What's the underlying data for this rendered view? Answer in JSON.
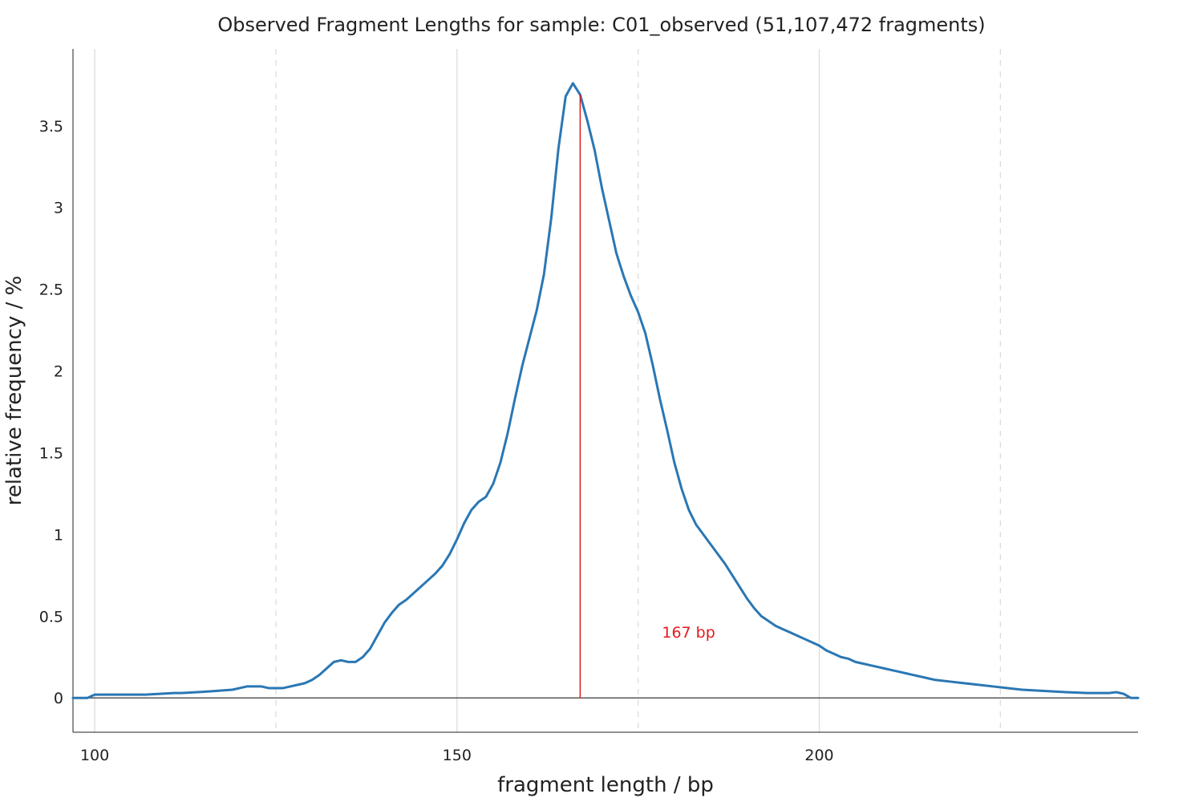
{
  "chart_data": {
    "type": "line",
    "title": "Observed Fragment Lengths for sample: C01_observed (51,107,472 fragments)",
    "xlabel": "fragment length / bp",
    "ylabel": "relative frequency / %",
    "xlim": [
      97,
      244
    ],
    "ylim": [
      -0.21,
      3.97
    ],
    "x_ticks": [
      100,
      150,
      200
    ],
    "y_ticks": [
      0,
      0.5,
      1,
      1.5,
      2,
      2.5,
      3,
      3.5
    ],
    "x_tick_labels": [
      "100",
      "150",
      "200"
    ],
    "y_tick_labels": [
      "0",
      "0.5",
      "1",
      "1.5",
      "2",
      "2.5",
      "3",
      "3.5"
    ],
    "grid": {
      "major_x": [
        100,
        150,
        200
      ],
      "minor_x": [
        125,
        175,
        225
      ],
      "y": false
    },
    "series": [
      {
        "color": "#2a77b4",
        "x": [
          97,
          99,
          100,
          103,
          107,
          111,
          112,
          116,
          119,
          121,
          122,
          123,
          124,
          126,
          127,
          128,
          129,
          130,
          131,
          132,
          133,
          134,
          135,
          136,
          137,
          138,
          139,
          140,
          141,
          142,
          143,
          144,
          145,
          146,
          147,
          148,
          149,
          150,
          151,
          152,
          153,
          154,
          155,
          156,
          157,
          158,
          159,
          160,
          161,
          162,
          163,
          164,
          165,
          166,
          167,
          168,
          169,
          170,
          171,
          172,
          173,
          174,
          175,
          176,
          177,
          178,
          179,
          180,
          181,
          182,
          183,
          184,
          185,
          186,
          187,
          188,
          189,
          190,
          191,
          192,
          193,
          194,
          195,
          196,
          197,
          198,
          199,
          200,
          201,
          202,
          203,
          204,
          205,
          206,
          207,
          208,
          209,
          210,
          211,
          212,
          213,
          214,
          215,
          216,
          218,
          220,
          222,
          224,
          226,
          228,
          230,
          232,
          234,
          237,
          240,
          241,
          242,
          243,
          244
        ],
        "y": [
          0.0,
          0.0,
          0.02,
          0.02,
          0.02,
          0.03,
          0.03,
          0.04,
          0.05,
          0.07,
          0.07,
          0.07,
          0.06,
          0.06,
          0.07,
          0.08,
          0.09,
          0.11,
          0.14,
          0.18,
          0.22,
          0.23,
          0.22,
          0.22,
          0.25,
          0.3,
          0.38,
          0.46,
          0.52,
          0.57,
          0.6,
          0.64,
          0.68,
          0.72,
          0.76,
          0.81,
          0.88,
          0.97,
          1.07,
          1.15,
          1.2,
          1.23,
          1.31,
          1.44,
          1.62,
          1.83,
          2.03,
          2.2,
          2.37,
          2.59,
          2.93,
          3.36,
          3.68,
          3.76,
          3.69,
          3.53,
          3.35,
          3.12,
          2.92,
          2.72,
          2.58,
          2.46,
          2.36,
          2.23,
          2.04,
          1.83,
          1.64,
          1.44,
          1.28,
          1.15,
          1.06,
          1.0,
          0.94,
          0.88,
          0.82,
          0.75,
          0.68,
          0.61,
          0.55,
          0.5,
          0.47,
          0.44,
          0.42,
          0.4,
          0.38,
          0.36,
          0.34,
          0.32,
          0.29,
          0.27,
          0.25,
          0.24,
          0.22,
          0.21,
          0.2,
          0.19,
          0.18,
          0.17,
          0.16,
          0.15,
          0.14,
          0.13,
          0.12,
          0.11,
          0.1,
          0.09,
          0.08,
          0.07,
          0.06,
          0.05,
          0.045,
          0.04,
          0.035,
          0.03,
          0.03,
          0.035,
          0.025,
          0.0,
          0.0
        ]
      }
    ],
    "marker": {
      "x": 167,
      "color": "#e41a1c",
      "label": "167 bp"
    },
    "zero_line": {
      "y": 0,
      "color": "#222222"
    }
  }
}
